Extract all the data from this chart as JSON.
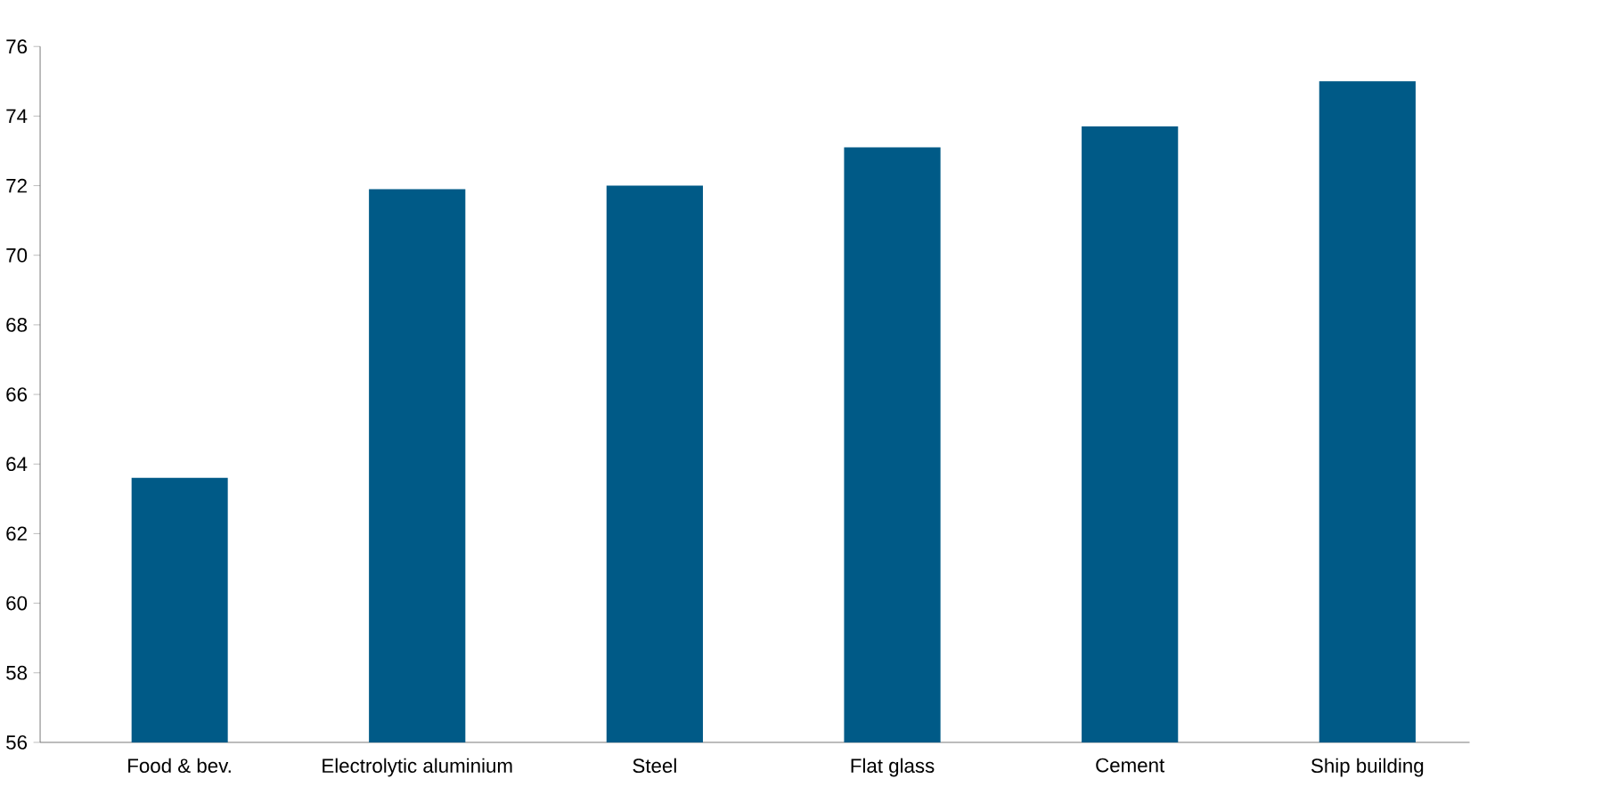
{
  "chart_data": {
    "type": "bar",
    "categories": [
      "Food & bev.",
      "Electrolytic aluminium",
      "Steel",
      "Flat glass",
      "Cement",
      "Ship building"
    ],
    "values": [
      63.6,
      71.9,
      72.0,
      73.1,
      73.7,
      75.0
    ],
    "color": "#005a87",
    "ylim": [
      56,
      76
    ],
    "yticks": [
      56,
      58,
      60,
      62,
      64,
      66,
      68,
      70,
      72,
      74,
      76
    ]
  }
}
